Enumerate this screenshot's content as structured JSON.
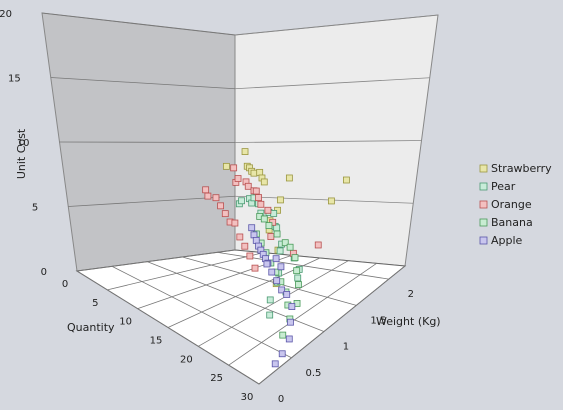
{
  "chart_data": {
    "type": "scatter",
    "projection": "3d",
    "xlabel": "Quantity",
    "ylabel": "Unit Cost",
    "zlabel": "Weight (Kg)",
    "xlim": [
      0,
      30
    ],
    "ylim": [
      0,
      20
    ],
    "zlim": [
      0,
      2.25
    ],
    "x_ticks": [
      "0",
      "5",
      "10",
      "15",
      "20",
      "25",
      "30"
    ],
    "y_ticks": [
      "0",
      "5",
      "10",
      "15",
      "20"
    ],
    "z_ticks": [
      "0",
      "0.5",
      "1",
      "1.5",
      "2"
    ],
    "grid": true,
    "legend_position": "right",
    "series": [
      {
        "name": "Strawberry",
        "color": "#e8e6a8",
        "stroke": "#9a9640",
        "points": [
          [
            3,
            11.5,
            0.1
          ],
          [
            4,
            10.0,
            0.15
          ],
          [
            5,
            10.0,
            0.2
          ],
          [
            6,
            9.8,
            0.25
          ],
          [
            7,
            9.8,
            0.3
          ],
          [
            8,
            10.0,
            0.3
          ],
          [
            9,
            9.6,
            0.35
          ],
          [
            10,
            9.4,
            0.4
          ],
          [
            4,
            10.5,
            0.45
          ],
          [
            12,
            9.5,
            0.2
          ],
          [
            18,
            8.4,
            1.0
          ],
          [
            19,
            8.0,
            1.1
          ],
          [
            17,
            8.6,
            0.8
          ],
          [
            22,
            10.2,
            0.2
          ],
          [
            24,
            10.0,
            0.6
          ],
          [
            25,
            9.2,
            1.5
          ],
          [
            28,
            8.0,
            1.8
          ],
          [
            14,
            8.2,
            0.5
          ]
        ]
      },
      {
        "name": "Pear",
        "color": "#c8ecd9",
        "stroke": "#4a9a72",
        "points": [
          [
            2,
            5.5,
            0.1
          ],
          [
            3,
            6.0,
            0.15
          ],
          [
            5,
            6.5,
            0.2
          ],
          [
            6,
            6.2,
            0.25
          ],
          [
            7,
            7.0,
            0.3
          ],
          [
            9,
            6.8,
            0.4
          ],
          [
            10,
            6.0,
            0.45
          ],
          [
            12,
            6.5,
            0.5
          ],
          [
            14,
            7.0,
            0.6
          ],
          [
            16,
            6.4,
            0.75
          ],
          [
            18,
            7.2,
            0.9
          ],
          [
            20,
            6.2,
            1.0
          ],
          [
            22,
            6.8,
            1.2
          ],
          [
            24,
            5.8,
            1.4
          ],
          [
            26,
            6.4,
            1.6
          ],
          [
            27,
            5.8,
            1.8
          ],
          [
            28,
            5.0,
            1.9
          ],
          [
            25,
            4.5,
            1.2
          ],
          [
            23,
            4.0,
            1.0
          ],
          [
            21,
            4.4,
            0.9
          ]
        ]
      },
      {
        "name": "Orange",
        "color": "#f3c0c0",
        "stroke": "#b85050",
        "points": [
          [
            1,
            9.5,
            0.1
          ],
          [
            2,
            8.0,
            0.15
          ],
          [
            3,
            8.6,
            0.2
          ],
          [
            5,
            8.5,
            0.25
          ],
          [
            6,
            8.2,
            0.3
          ],
          [
            7,
            7.8,
            0.3
          ],
          [
            8,
            8.0,
            0.35
          ],
          [
            9,
            7.5,
            0.4
          ],
          [
            10,
            7.0,
            0.45
          ],
          [
            1,
            7.5,
            0.5
          ],
          [
            2,
            7.0,
            0.55
          ],
          [
            4,
            7.2,
            0.6
          ],
          [
            6,
            6.8,
            0.7
          ],
          [
            8,
            6.5,
            0.8
          ],
          [
            10,
            6.2,
            0.9
          ],
          [
            12,
            6.8,
            1.0
          ],
          [
            14,
            6.0,
            1.1
          ],
          [
            16,
            5.8,
            1.2
          ],
          [
            18,
            5.6,
            1.3
          ],
          [
            20,
            5.2,
            1.4
          ],
          [
            22,
            5.6,
            1.0
          ],
          [
            24,
            6.0,
            0.8
          ],
          [
            13,
            7.2,
            0.6
          ],
          [
            15,
            6.5,
            0.7
          ],
          [
            17,
            6.0,
            0.9
          ]
        ]
      },
      {
        "name": "Banana",
        "color": "#c8ecd2",
        "stroke": "#4a9a5a",
        "points": [
          [
            8,
            5.0,
            0.3
          ],
          [
            10,
            5.2,
            0.4
          ],
          [
            12,
            5.0,
            0.5
          ],
          [
            14,
            4.5,
            0.55
          ],
          [
            16,
            4.0,
            0.6
          ],
          [
            18,
            4.2,
            0.7
          ],
          [
            20,
            3.8,
            0.8
          ],
          [
            22,
            3.4,
            0.95
          ],
          [
            24,
            3.0,
            1.1
          ],
          [
            26,
            2.4,
            1.3
          ],
          [
            27,
            2.0,
            1.5
          ],
          [
            28,
            1.6,
            1.7
          ],
          [
            11,
            4.2,
            0.6
          ],
          [
            13,
            3.8,
            0.7
          ],
          [
            15,
            3.4,
            0.8
          ],
          [
            17,
            3.0,
            0.9
          ],
          [
            19,
            2.8,
            1.0
          ],
          [
            21,
            2.6,
            1.1
          ],
          [
            23,
            2.4,
            1.2
          ],
          [
            25,
            2.2,
            1.35
          ]
        ]
      },
      {
        "name": "Apple",
        "color": "#c9c6ee",
        "stroke": "#5a56a8",
        "points": [
          [
            6,
            3.4,
            0.25
          ],
          [
            7,
            2.8,
            0.3
          ],
          [
            8,
            2.4,
            0.35
          ],
          [
            9,
            2.0,
            0.4
          ],
          [
            10,
            1.8,
            0.45
          ],
          [
            11,
            1.6,
            0.5
          ],
          [
            12,
            1.4,
            0.55
          ],
          [
            13,
            1.2,
            0.6
          ],
          [
            14,
            1.6,
            0.7
          ],
          [
            16,
            1.4,
            0.8
          ],
          [
            18,
            1.2,
            0.9
          ],
          [
            20,
            1.0,
            1.0
          ],
          [
            22,
            1.4,
            1.1
          ],
          [
            24,
            1.0,
            1.2
          ],
          [
            26,
            0.8,
            1.4
          ],
          [
            28,
            0.6,
            1.6
          ],
          [
            29,
            0.4,
            1.8
          ],
          [
            30,
            0.8,
            2.0
          ],
          [
            15,
            2.2,
            0.65
          ],
          [
            17,
            2.0,
            0.75
          ]
        ]
      }
    ]
  }
}
